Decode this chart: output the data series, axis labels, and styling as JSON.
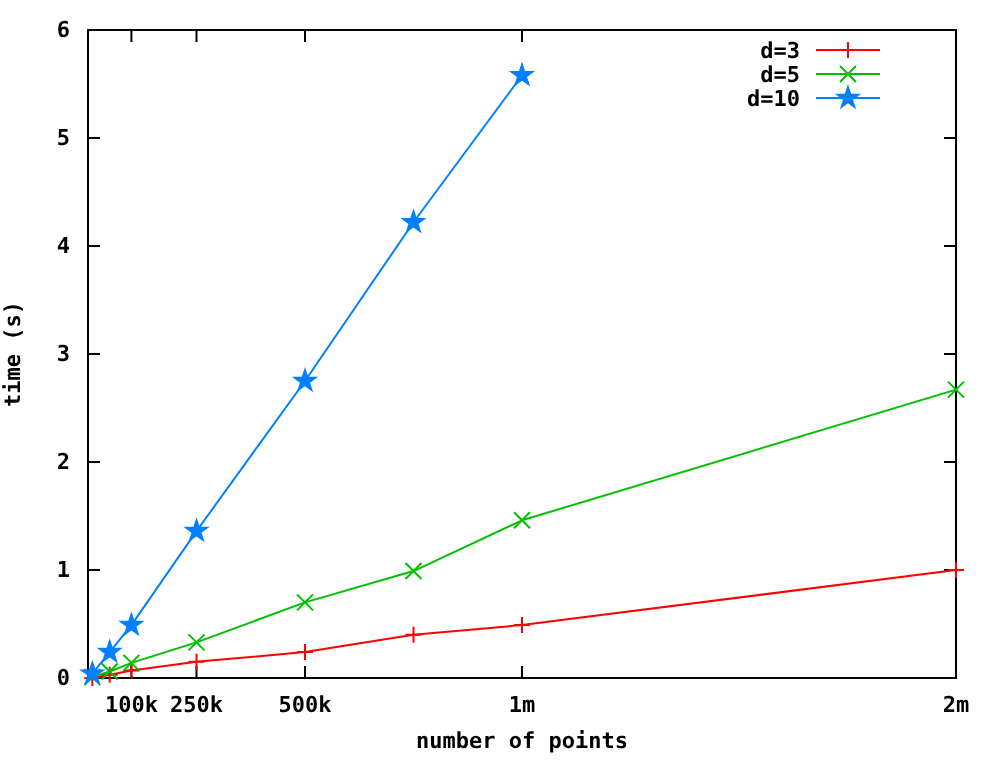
{
  "chart_data": {
    "type": "line",
    "xlabel": "number of points",
    "ylabel": "time (s)",
    "x": [
      10000,
      50000,
      100000,
      250000,
      500000,
      750000,
      1000000,
      2000000
    ],
    "xlim": [
      0,
      2000000
    ],
    "xticks": [
      {
        "value": 100000,
        "label": "100k"
      },
      {
        "value": 250000,
        "label": "250k"
      },
      {
        "value": 500000,
        "label": "500k"
      },
      {
        "value": 1000000,
        "label": "1m"
      },
      {
        "value": 2000000,
        "label": "2m"
      }
    ],
    "ylim": [
      0,
      6
    ],
    "yticks": [
      0,
      1,
      2,
      3,
      4,
      5,
      6
    ],
    "grid": false,
    "legend": "top right",
    "line_style": "solid",
    "series": [
      {
        "name": "d=3",
        "color": "#ff0000",
        "marker": "cross",
        "values": [
          0.0,
          0.03,
          0.07,
          0.15,
          0.24,
          0.4,
          0.49,
          1.0
        ]
      },
      {
        "name": "d=5",
        "color": "#00c000",
        "marker": "x",
        "values": [
          0.01,
          0.06,
          0.14,
          0.33,
          0.7,
          0.99,
          1.46,
          2.67
        ]
      },
      {
        "name": "d=10",
        "color": "#0080ff",
        "marker": "star",
        "values": [
          0.04,
          0.24,
          0.49,
          1.36,
          2.75,
          4.22,
          5.58,
          null
        ]
      }
    ]
  }
}
